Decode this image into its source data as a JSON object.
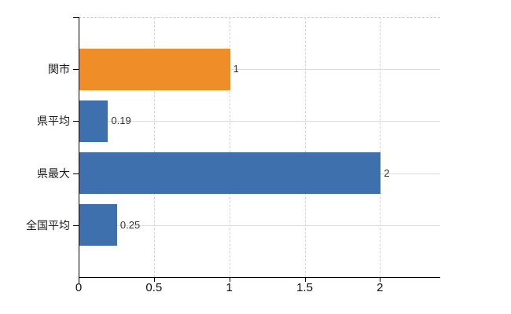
{
  "chart_data": {
    "type": "bar",
    "orientation": "horizontal",
    "title": "",
    "categories": [
      "関市",
      "県平均",
      "県最大",
      "全国平均"
    ],
    "values": [
      1,
      0.19,
      2,
      0.25
    ],
    "value_labels": [
      "1",
      "0.19",
      "2",
      "0.25"
    ],
    "bar_colors": [
      "#ef8d29",
      "#3f70ae",
      "#3f70ae",
      "#3f70ae"
    ],
    "x_tick_values": [
      0,
      0.5,
      1,
      1.5,
      2
    ],
    "x_tick_labels": [
      "0",
      "0.5",
      "1",
      "1.5",
      "2"
    ],
    "xlim": [
      0,
      2.4
    ],
    "grid": true,
    "legend_position": "none",
    "colors": {
      "highlight_bar": "#ef8d29",
      "default_bar": "#3f70ae",
      "axis": "#000000",
      "h_gridline": "#dcdcdc",
      "v_gridline": "#d2d2d2",
      "top_border": "#c9c9c9",
      "value_text": "#333333",
      "label_text": "#1a1a1a",
      "background": "#ffffff"
    }
  }
}
